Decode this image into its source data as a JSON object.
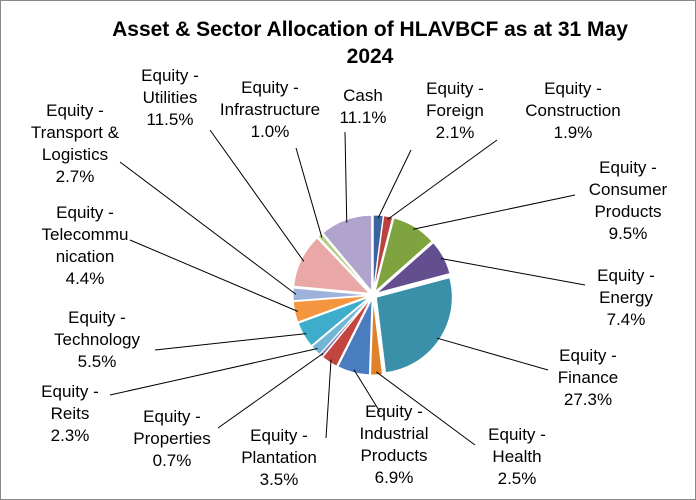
{
  "chart_data": {
    "type": "pie",
    "title": "Asset & Sector Allocation of HLAVBCF as at 31 May 2024",
    "categories": [
      "Equity - Foreign",
      "Equity - Construction",
      "Equity - Consumer Products",
      "Equity - Energy",
      "Equity - Finance",
      "Equity - Health",
      "Equity - Industrial Products",
      "Equity - Plantation",
      "Equity - Properties",
      "Equity - Reits",
      "Equity - Technology",
      "Equity - Telecommunication",
      "Equity - Transport & Logistics",
      "Equity - Utilities",
      "Equity - Infrastructure",
      "Cash"
    ],
    "values": [
      2.1,
      1.9,
      9.5,
      7.4,
      27.3,
      2.5,
      6.9,
      3.5,
      0.7,
      2.3,
      5.5,
      4.4,
      2.7,
      11.5,
      1.0,
      11.1
    ],
    "value_labels": [
      "2.1%",
      "1.9%",
      "9.5%",
      "7.4%",
      "27.3%",
      "2.5%",
      "6.9%",
      "3.5%",
      "0.7%",
      "2.3%",
      "5.5%",
      "4.4%",
      "2.7%",
      "11.5%",
      "1.0%",
      "11.1%"
    ],
    "colors": [
      "#3d62a0",
      "#b9413e",
      "#7fa33f",
      "#634f8f",
      "#3a90a8",
      "#e0822a",
      "#4a7cc0",
      "#c2453f",
      "#8c78b0",
      "#72b6d6",
      "#3eaccb",
      "#f4953f",
      "#9fb2dc",
      "#e9a8a6",
      "#b6cf84",
      "#b0a3cc"
    ]
  }
}
